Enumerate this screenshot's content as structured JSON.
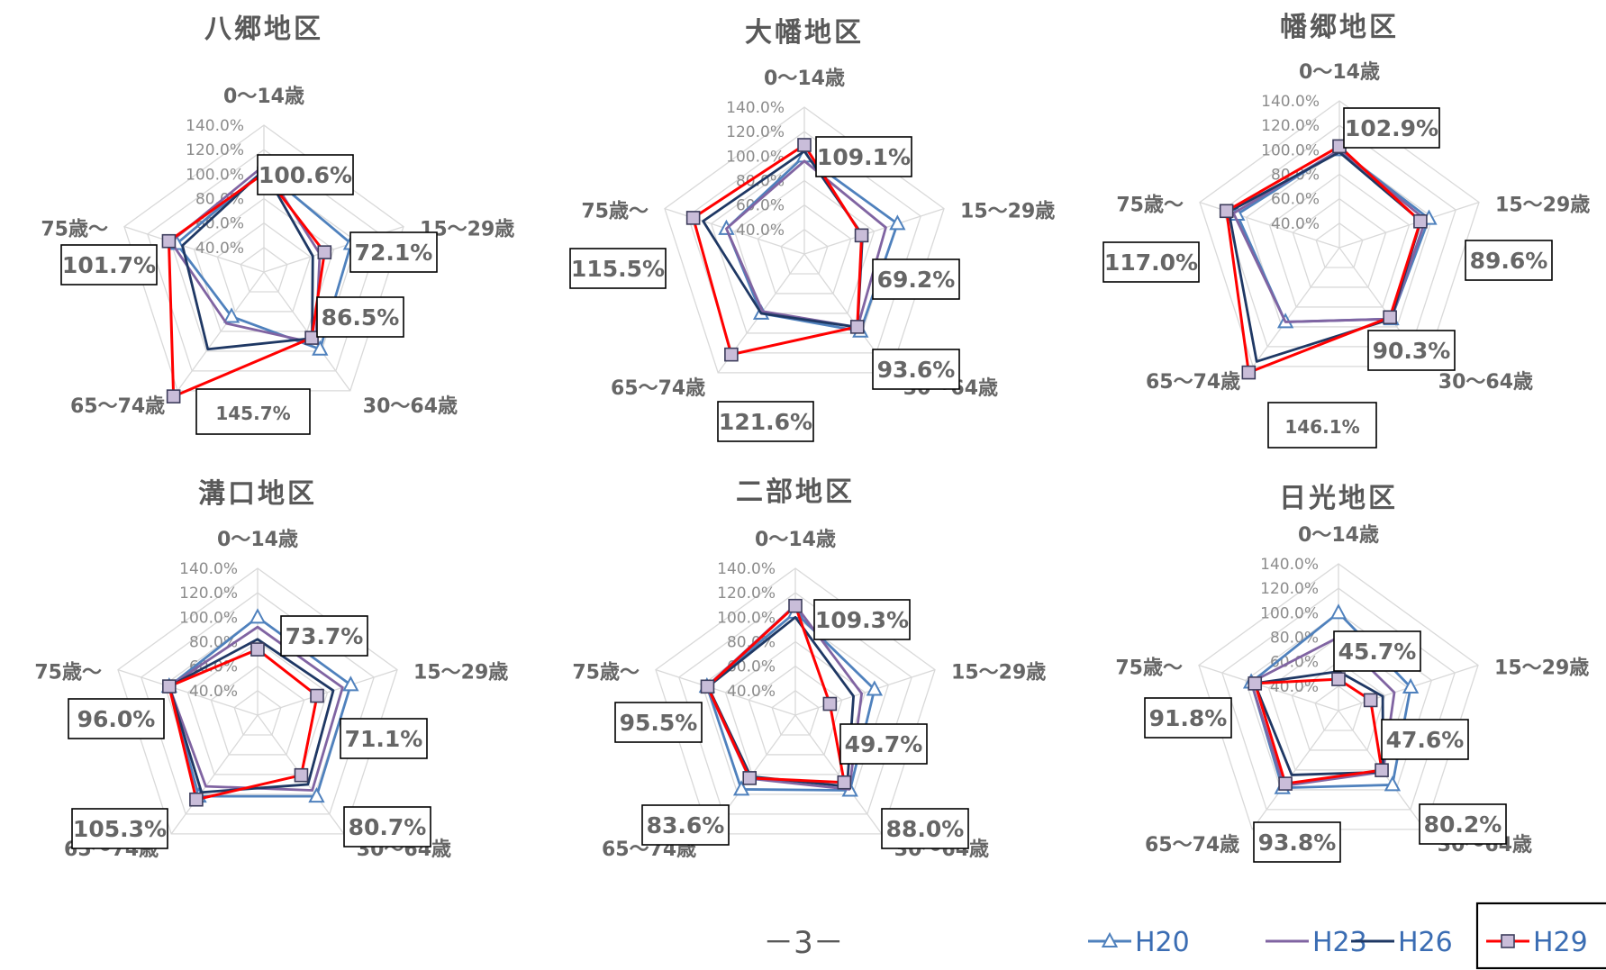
{
  "page_number": "－3－",
  "legend": [
    {
      "name": "H20",
      "color": "#4f81bd",
      "marker": "triangle"
    },
    {
      "name": "H23",
      "color": "#8064a2",
      "marker": "none"
    },
    {
      "name": "H26",
      "color": "#1f3864",
      "marker": "none"
    },
    {
      "name": "H29",
      "color": "#ff0000",
      "marker": "square"
    }
  ],
  "chart_data": [
    {
      "type": "radar",
      "title": "八郷地区",
      "axes": [
        "0～14歳",
        "15～29歳",
        "30～64歳",
        "65～74歳",
        "75歳～"
      ],
      "ticks": [
        "40.0%",
        "60.0%",
        "80.0%",
        "100.0%",
        "120.0%",
        "140.0%"
      ],
      "rmin": 20,
      "rmax": 140,
      "series": [
        {
          "name": "H20",
          "values": [
            103,
            95,
            98,
            65,
            95
          ]
        },
        {
          "name": "H23",
          "values": [
            107,
            68,
            92,
            72,
            100
          ]
        },
        {
          "name": "H26",
          "values": [
            103,
            62,
            87,
            98,
            90
          ]
        },
        {
          "name": "H29",
          "values": [
            100.6,
            72.1,
            86.5,
            145.7,
            101.7
          ]
        }
      ],
      "callouts": [
        "100.6%",
        "72.1%",
        "86.5%",
        "145.7%",
        "101.7%"
      ]
    },
    {
      "type": "radar",
      "title": "大幡地区",
      "axes": [
        "0～14歳",
        "15～29歳",
        "30～64歳",
        "65～74歳",
        "75歳～"
      ],
      "ticks": [
        "40.0%",
        "60.0%",
        "80.0%",
        "100.0%",
        "120.0%",
        "140.0%"
      ],
      "rmin": 20,
      "rmax": 140,
      "series": [
        {
          "name": "H20",
          "values": [
            100,
            100,
            98,
            80,
            87
          ]
        },
        {
          "name": "H23",
          "values": [
            96,
            90,
            94,
            78,
            87
          ]
        },
        {
          "name": "H26",
          "values": [
            104,
            70,
            94,
            80,
            107
          ]
        },
        {
          "name": "H29",
          "values": [
            109.1,
            69.2,
            93.6,
            121.6,
            115.5
          ]
        }
      ],
      "callouts": [
        "109.1%",
        "69.2%",
        "93.6%",
        "121.6%",
        "115.5%"
      ]
    },
    {
      "type": "radar",
      "title": "幡郷地区",
      "axes": [
        "0～14歳",
        "15～29歳",
        "30～64歳",
        "65～74歳",
        "75歳～"
      ],
      "ticks": [
        "40.0%",
        "60.0%",
        "80.0%",
        "100.0%",
        "120.0%",
        "140.0%"
      ],
      "rmin": 20,
      "rmax": 140,
      "series": [
        {
          "name": "H20",
          "values": [
            100,
            97,
            92,
            95,
            108
          ]
        },
        {
          "name": "H23",
          "values": [
            100,
            94,
            92,
            95,
            111
          ]
        },
        {
          "name": "H26",
          "values": [
            98,
            90,
            92,
            135,
            115
          ]
        },
        {
          "name": "H29",
          "values": [
            102.9,
            89.6,
            90.3,
            146.1,
            117.0
          ]
        }
      ],
      "callouts": [
        "102.9%",
        "89.6%",
        "90.3%",
        "146.1%",
        "117.0%"
      ]
    },
    {
      "type": "radar",
      "title": "溝口地区",
      "axes": [
        "0～14歳",
        "15～29歳",
        "30～64歳",
        "65～74歳",
        "75歳～"
      ],
      "ticks": [
        "40.0%",
        "60.0%",
        "80.0%",
        "100.0%",
        "120.0%",
        "140.0%"
      ],
      "rmin": 20,
      "rmax": 140,
      "series": [
        {
          "name": "H20",
          "values": [
            100,
            100,
            102,
            102,
            96
          ]
        },
        {
          "name": "H23",
          "values": [
            92,
            93,
            96,
            92,
            96
          ]
        },
        {
          "name": "H26",
          "values": [
            82,
            85,
            90,
            98,
            96
          ]
        },
        {
          "name": "H29",
          "values": [
            73.7,
            71.1,
            80.7,
            105.3,
            96.0
          ]
        }
      ],
      "callouts": [
        "73.7%",
        "71.1%",
        "80.7%",
        "105.3%",
        "96.0%"
      ]
    },
    {
      "type": "radar",
      "title": "二部地区",
      "axes": [
        "0～14歳",
        "15～29歳",
        "30～64歳",
        "65～74歳",
        "75歳～"
      ],
      "ticks": [
        "40.0%",
        "60.0%",
        "80.0%",
        "100.0%",
        "120.0%",
        "140.0%"
      ],
      "rmin": 20,
      "rmax": 140,
      "series": [
        {
          "name": "H20",
          "values": [
            104,
            88,
            96,
            95,
            96
          ]
        },
        {
          "name": "H23",
          "values": [
            110,
            77,
            95,
            84,
            96
          ]
        },
        {
          "name": "H26",
          "values": [
            100,
            70,
            92,
            82,
            95
          ]
        },
        {
          "name": "H29",
          "values": [
            109.3,
            49.7,
            88.0,
            83.6,
            95.5
          ]
        }
      ],
      "callouts": [
        "109.3%",
        "49.7%",
        "88.0%",
        "83.6%",
        "95.5%"
      ]
    },
    {
      "type": "radar",
      "title": "日光地区",
      "axes": [
        "0～14歳",
        "15～29歳",
        "30～64歳",
        "65～74歳",
        "75歳～"
      ],
      "ticks": [
        "40.0%",
        "60.0%",
        "80.0%",
        "100.0%",
        "120.0%",
        "140.0%"
      ],
      "rmin": 20,
      "rmax": 140,
      "series": [
        {
          "name": "H20",
          "values": [
            100,
            82,
            95,
            98,
            95
          ]
        },
        {
          "name": "H23",
          "values": [
            80,
            68,
            82,
            96,
            95
          ]
        },
        {
          "name": "H26",
          "values": [
            52,
            58,
            82,
            85,
            92
          ]
        },
        {
          "name": "H29",
          "values": [
            45.7,
            47.6,
            80.2,
            93.8,
            91.8
          ]
        }
      ],
      "callouts": [
        "45.7%",
        "47.6%",
        "80.2%",
        "93.8%",
        "91.8%"
      ]
    }
  ]
}
